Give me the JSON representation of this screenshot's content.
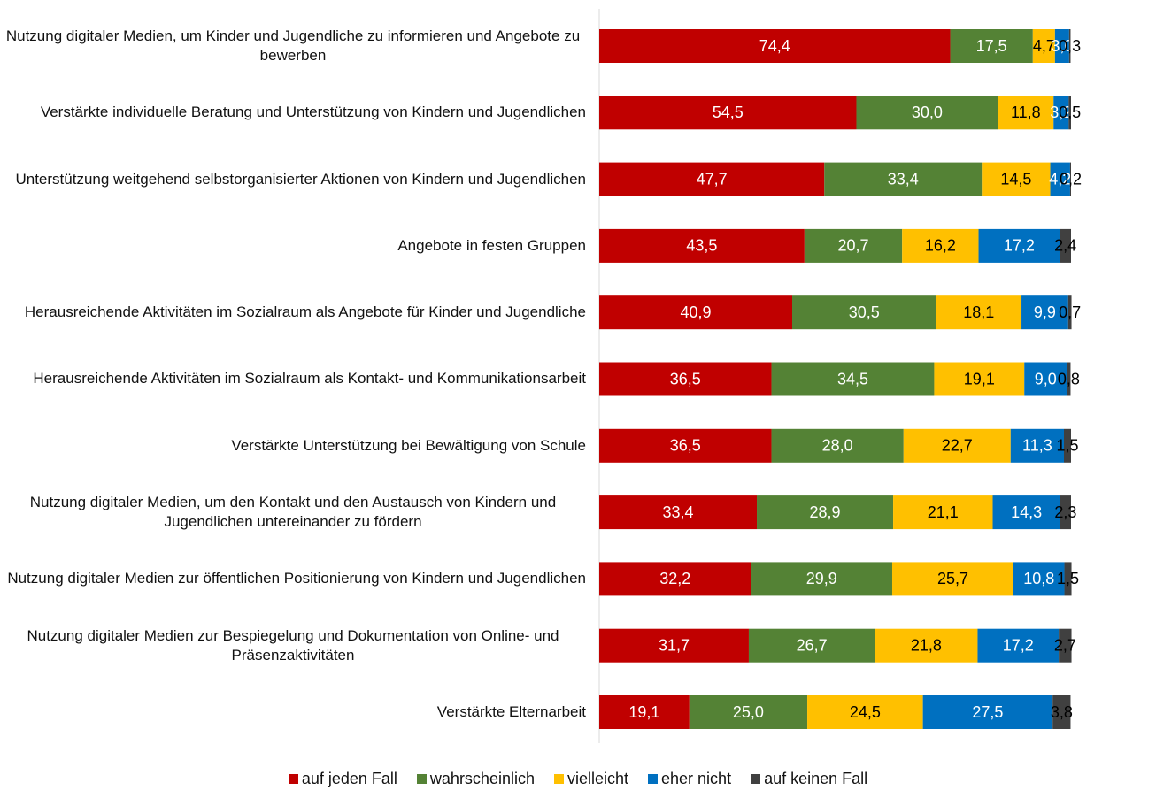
{
  "chart_data": {
    "type": "stacked_bar_horizontal",
    "categories": [
      "Nutzung digitaler Medien, um Kinder und Jugendliche zu informieren und Angebote zu bewerben",
      "Verstärkte individuelle Beratung und Unterstützung von Kindern und Jugendlichen",
      "Unterstützung weitgehend selbstorganisierter Aktionen von Kindern und Jugendlichen",
      "Angebote in festen Gruppen",
      "Herausreichende Aktivitäten im Sozialraum als Angebote für Kinder und Jugendliche",
      "Herausreichende Aktivitäten im Sozialraum als Kontakt- und Kommunikationsarbeit",
      "Verstärkte Unterstützung bei Bewältigung von Schule",
      "Nutzung digitaler Medien, um den Kontakt und den Austausch von Kindern und Jugendlichen untereinander zu fördern",
      "Nutzung digitaler Medien zur öffentlichen Positionierung von Kindern und Jugendlichen",
      "Nutzung digitaler Medien zur Bespiegelung und Dokumentation von Online- und Präsenzaktivitäten",
      "Verstärkte Elternarbeit"
    ],
    "series": [
      {
        "name": "auf jeden Fall",
        "color": "#c00000",
        "label_color": "#ffffff",
        "values": [
          74.4,
          54.5,
          47.7,
          43.5,
          40.9,
          36.5,
          36.5,
          33.4,
          32.2,
          31.7,
          19.1
        ],
        "value_labels": [
          "74,4",
          "54,5",
          "47,7",
          "43,5",
          "40,9",
          "36,5",
          "36,5",
          "33,4",
          "32,2",
          "31,7",
          "19,1"
        ]
      },
      {
        "name": "wahrscheinlich",
        "color": "#548235",
        "label_color": "#ffffff",
        "values": [
          17.5,
          30.0,
          33.4,
          20.7,
          30.5,
          34.5,
          28.0,
          28.9,
          29.9,
          26.7,
          25.0
        ],
        "value_labels": [
          "17,5",
          "30,0",
          "33,4",
          "20,7",
          "30,5",
          "34,5",
          "28,0",
          "28,9",
          "29,9",
          "26,7",
          "25,0"
        ]
      },
      {
        "name": "vielleicht",
        "color": "#ffc000",
        "label_color": "#000000",
        "values": [
          4.7,
          11.8,
          14.5,
          16.2,
          18.1,
          19.1,
          22.7,
          21.1,
          25.7,
          21.8,
          24.5
        ],
        "value_labels": [
          "4,7",
          "11,8",
          "14,5",
          "16,2",
          "18,1",
          "19,1",
          "22,7",
          "21,1",
          "25,7",
          "21,8",
          "24,5"
        ]
      },
      {
        "name": "eher nicht",
        "color": "#0070c0",
        "label_color": "#ffffff",
        "values": [
          3.0,
          3.2,
          4.2,
          17.2,
          9.9,
          9.0,
          11.3,
          14.3,
          10.8,
          17.2,
          27.5
        ],
        "value_labels": [
          "3,0",
          "3,2",
          "4,2",
          "17,2",
          "9,9",
          "9,0",
          "11,3",
          "14,3",
          "10,8",
          "17,2",
          "27,5"
        ]
      },
      {
        "name": "auf keinen Fall",
        "color": "#404040",
        "label_color": "#000000",
        "values": [
          0.3,
          0.5,
          0.2,
          2.4,
          0.7,
          0.8,
          1.5,
          2.3,
          1.5,
          2.7,
          3.8
        ],
        "value_labels": [
          "0,3",
          "0,5",
          "0,2",
          "2,4",
          "0,7",
          "0,8",
          "1,5",
          "2,3",
          "1,5",
          "2,7",
          "3,8"
        ]
      }
    ],
    "xlim": [
      0,
      100
    ]
  }
}
